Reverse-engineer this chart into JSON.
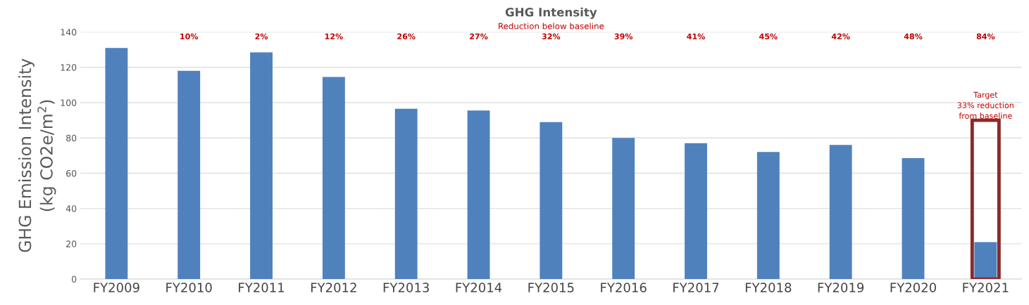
{
  "chart_data": {
    "type": "bar",
    "title": "GHG Intensity",
    "ylabel": "GHG Emission Intensity\n(kg CO2e/m$^{2}$)",
    "categories": [
      "FY2009",
      "FY2010",
      "FY2011",
      "FY2012",
      "FY2013",
      "FY2014",
      "FY2015",
      "FY2016",
      "FY2017",
      "FY2018",
      "FY2019",
      "FY2020",
      "FY2021"
    ],
    "series": [
      {
        "color": "#4f81bd",
        "values": [
          131,
          118,
          128.5,
          114.5,
          96.5,
          95.5,
          89,
          80,
          77,
          72,
          76,
          68.5,
          21
        ]
      },
      {
        "color": "#8b2a2a",
        "values": [
          null,
          null,
          null,
          null,
          null,
          null,
          null,
          null,
          null,
          null,
          null,
          null,
          90
        ]
      }
    ],
    "ylim": [
      0,
      140
    ],
    "yticks": [
      0,
      20,
      40,
      60,
      80,
      100,
      120,
      140
    ],
    "grid": "y",
    "legend": false,
    "annotations": [
      "Reduction below baseline",
      "10%",
      "2%",
      "12%",
      "26%",
      "27%",
      "32%",
      "39%",
      "41%",
      "45%",
      "42%",
      "48%",
      "84%",
      {
        "text": "Target\n33% reduction\nfrom baseline",
        "x": "FY2021",
        "y": 90
      }
    ]
  }
}
